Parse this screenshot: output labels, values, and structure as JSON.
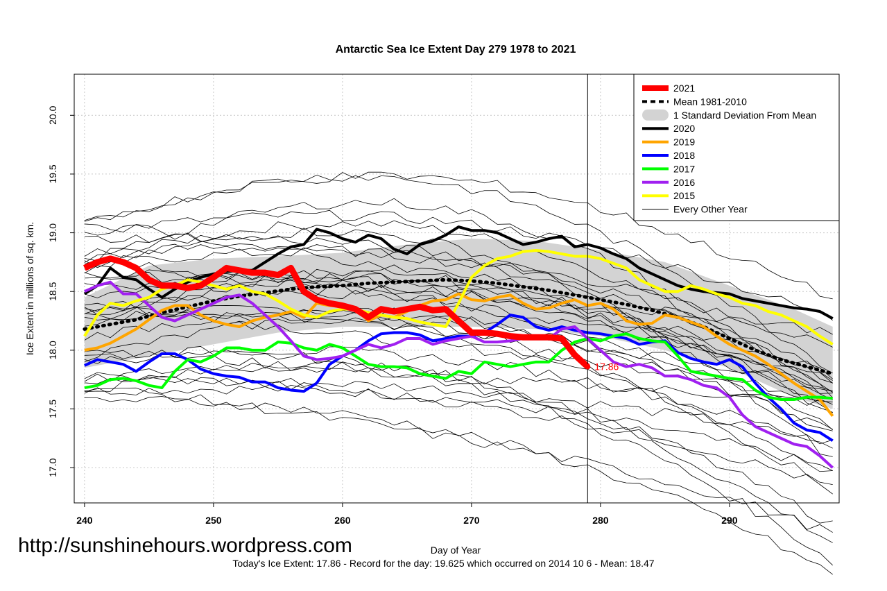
{
  "chart_data": {
    "type": "line",
    "title": "Antarctic Sea Ice Extent Day 279 1978 to 2021",
    "xlabel": "Day of Year",
    "ylabel": "Ice Extent in millions of sq. km.",
    "xlim": [
      239.2,
      298.5
    ],
    "ylim": [
      16.7,
      20.35
    ],
    "x_ticks": [
      240,
      250,
      260,
      270,
      280,
      290
    ],
    "x_tick_labels": [
      "240",
      "250",
      "260",
      "270",
      "280",
      "290"
    ],
    "y_ticks": [
      17.0,
      17.5,
      18.0,
      18.5,
      19.0,
      19.5,
      20.0
    ],
    "y_tick_labels": [
      "17.0",
      "17.5",
      "18.0",
      "18.5",
      "19.0",
      "19.5",
      "20.0"
    ],
    "grid": true,
    "current_day": 279,
    "current_value_label": "17.86",
    "legend_position": "top-right",
    "legend": [
      {
        "label": "2021",
        "color": "#ff0000",
        "style": "thick"
      },
      {
        "label": "Mean 1981-2010",
        "color": "#000000",
        "style": "dotted"
      },
      {
        "label": "1 Standard Deviation From Mean",
        "color": "#d3d3d3",
        "style": "band"
      },
      {
        "label": "2020",
        "color": "#000000",
        "style": "solid"
      },
      {
        "label": "2019",
        "color": "#ffa500",
        "style": "solid"
      },
      {
        "label": "2018",
        "color": "#0000ff",
        "style": "solid"
      },
      {
        "label": "2017",
        "color": "#00ff00",
        "style": "solid"
      },
      {
        "label": "2016",
        "color": "#a020f0",
        "style": "solid"
      },
      {
        "label": "2015",
        "color": "#ffff00",
        "style": "solid"
      },
      {
        "label": "Every Other Year",
        "color": "#000000",
        "style": "thin"
      }
    ],
    "std_band": {
      "x": [
        240,
        245,
        250,
        255,
        260,
        265,
        270,
        275,
        280,
        285,
        290,
        295,
        298
      ],
      "upper": [
        18.45,
        18.72,
        18.78,
        18.8,
        18.83,
        18.9,
        18.95,
        18.93,
        18.85,
        18.75,
        18.55,
        18.35,
        18.2
      ],
      "lower": [
        17.85,
        17.95,
        18.05,
        18.15,
        18.2,
        18.2,
        18.2,
        18.18,
        18.12,
        18.0,
        17.85,
        17.6,
        17.5
      ]
    },
    "series": [
      {
        "name": "2021",
        "color": "#ff0000",
        "width": 9,
        "x": [
          240,
          241,
          242,
          243,
          244,
          245,
          246,
          247,
          248,
          249,
          250,
          251,
          252,
          253,
          254,
          255,
          256,
          257,
          258,
          259,
          260,
          261,
          262,
          263,
          264,
          265,
          266,
          267,
          268,
          269,
          270,
          271,
          272,
          273,
          274,
          275,
          276,
          277,
          278,
          279
        ],
        "values": [
          18.7,
          18.75,
          18.78,
          18.75,
          18.7,
          18.6,
          18.55,
          18.55,
          18.53,
          18.55,
          18.62,
          18.7,
          18.68,
          18.66,
          18.66,
          18.64,
          18.7,
          18.5,
          18.43,
          18.4,
          18.38,
          18.35,
          18.28,
          18.35,
          18.33,
          18.35,
          18.37,
          18.34,
          18.35,
          18.25,
          18.15,
          18.15,
          18.14,
          18.12,
          18.11,
          18.11,
          18.11,
          18.1,
          17.96,
          17.86
        ]
      },
      {
        "name": "Mean 1981-2010",
        "color": "#000000",
        "width": 5,
        "dash": "2,7",
        "x": [
          240,
          242,
          244,
          246,
          248,
          250,
          252,
          254,
          256,
          258,
          260,
          262,
          264,
          266,
          268,
          270,
          272,
          274,
          276,
          278,
          280,
          282,
          284,
          286,
          288,
          290,
          292,
          294,
          296,
          298
        ],
        "values": [
          18.18,
          18.22,
          18.26,
          18.32,
          18.37,
          18.42,
          18.46,
          18.49,
          18.52,
          18.54,
          18.55,
          18.57,
          18.58,
          18.59,
          18.6,
          18.59,
          18.57,
          18.54,
          18.51,
          18.47,
          18.43,
          18.39,
          18.34,
          18.28,
          18.2,
          18.1,
          18.0,
          17.92,
          17.86,
          17.8
        ]
      },
      {
        "name": "2020",
        "color": "#000000",
        "width": 4,
        "x": [
          240,
          241,
          242,
          243,
          244,
          245,
          246,
          247,
          248,
          249,
          250,
          251,
          252,
          253,
          254,
          255,
          256,
          257,
          258,
          259,
          260,
          261,
          262,
          263,
          264,
          265,
          266,
          267,
          268,
          269,
          270,
          271,
          272,
          273,
          274,
          275,
          276,
          277,
          278,
          279,
          280,
          281,
          282,
          283,
          284,
          285,
          286,
          287,
          288,
          289,
          290,
          291,
          292,
          293,
          294,
          295,
          296,
          297,
          298
        ],
        "values": [
          18.48,
          18.55,
          18.7,
          18.62,
          18.6,
          18.52,
          18.45,
          18.52,
          18.58,
          18.62,
          18.65,
          18.67,
          18.68,
          18.68,
          18.75,
          18.82,
          18.88,
          18.9,
          19.03,
          19.0,
          18.95,
          18.92,
          18.98,
          18.95,
          18.86,
          18.82,
          18.9,
          18.93,
          18.98,
          19.05,
          19.02,
          19.02,
          19.0,
          18.95,
          18.9,
          18.92,
          18.95,
          18.97,
          18.88,
          18.9,
          18.87,
          18.82,
          18.78,
          18.7,
          18.65,
          18.6,
          18.55,
          18.52,
          18.5,
          18.49,
          18.48,
          18.44,
          18.42,
          18.4,
          18.38,
          18.36,
          18.35,
          18.33,
          18.27
        ]
      },
      {
        "name": "2019",
        "color": "#ffa500",
        "width": 4,
        "x": [
          240,
          241,
          242,
          243,
          244,
          245,
          246,
          247,
          248,
          249,
          250,
          251,
          252,
          253,
          254,
          255,
          256,
          257,
          258,
          259,
          260,
          261,
          262,
          263,
          264,
          265,
          266,
          267,
          268,
          269,
          270,
          271,
          272,
          273,
          274,
          275,
          276,
          277,
          278,
          279,
          280,
          281,
          282,
          283,
          284,
          285,
          286,
          287,
          288,
          289,
          290,
          291,
          292,
          293,
          294,
          295,
          296,
          297,
          298
        ],
        "values": [
          18.0,
          18.02,
          18.06,
          18.12,
          18.18,
          18.26,
          18.34,
          18.38,
          18.38,
          18.3,
          18.25,
          18.22,
          18.2,
          18.25,
          18.28,
          18.3,
          18.33,
          18.28,
          18.4,
          18.38,
          18.37,
          18.35,
          18.25,
          18.3,
          18.28,
          18.33,
          18.38,
          18.42,
          18.43,
          18.48,
          18.43,
          18.42,
          18.45,
          18.47,
          18.4,
          18.35,
          18.36,
          18.4,
          18.43,
          18.38,
          18.4,
          18.35,
          18.25,
          18.22,
          18.23,
          18.3,
          18.28,
          18.24,
          18.2,
          18.12,
          18.05,
          18.0,
          17.95,
          17.88,
          17.8,
          17.72,
          17.65,
          17.58,
          17.44
        ]
      },
      {
        "name": "2018",
        "color": "#0000ff",
        "width": 4,
        "x": [
          240,
          241,
          242,
          243,
          244,
          245,
          246,
          247,
          248,
          249,
          250,
          251,
          252,
          253,
          254,
          255,
          256,
          257,
          258,
          259,
          260,
          261,
          262,
          263,
          264,
          265,
          266,
          267,
          268,
          269,
          270,
          271,
          272,
          273,
          274,
          275,
          276,
          277,
          278,
          279,
          280,
          281,
          282,
          283,
          284,
          285,
          286,
          287,
          288,
          289,
          290,
          291,
          292,
          293,
          294,
          295,
          296,
          297,
          298
        ],
        "values": [
          17.87,
          17.92,
          17.9,
          17.88,
          17.82,
          17.9,
          17.97,
          17.97,
          17.92,
          17.84,
          17.8,
          17.78,
          17.77,
          17.73,
          17.73,
          17.68,
          17.66,
          17.65,
          17.72,
          17.88,
          17.95,
          18.0,
          18.08,
          18.14,
          18.15,
          18.15,
          18.13,
          18.08,
          18.1,
          18.12,
          18.12,
          18.15,
          18.22,
          18.3,
          18.28,
          18.2,
          18.17,
          18.2,
          18.17,
          18.15,
          18.14,
          18.12,
          18.1,
          18.05,
          18.07,
          18.08,
          17.98,
          17.93,
          17.9,
          17.88,
          17.92,
          17.86,
          17.72,
          17.6,
          17.5,
          17.38,
          17.32,
          17.3,
          17.23
        ]
      },
      {
        "name": "2017",
        "color": "#00ff00",
        "width": 4,
        "x": [
          240,
          241,
          242,
          243,
          244,
          245,
          246,
          247,
          248,
          249,
          250,
          251,
          252,
          253,
          254,
          255,
          256,
          257,
          258,
          259,
          260,
          261,
          262,
          263,
          264,
          265,
          266,
          267,
          268,
          269,
          270,
          271,
          272,
          273,
          274,
          275,
          276,
          277,
          278,
          279,
          280,
          281,
          282,
          283,
          284,
          285,
          286,
          287,
          288,
          289,
          290,
          291,
          292,
          293,
          294,
          295,
          296,
          297,
          298
        ],
        "values": [
          17.68,
          17.7,
          17.75,
          17.76,
          17.74,
          17.7,
          17.68,
          17.82,
          17.92,
          17.9,
          17.95,
          18.02,
          18.02,
          18.0,
          18.0,
          18.07,
          18.06,
          18.02,
          18.0,
          18.05,
          18.02,
          17.95,
          17.88,
          17.86,
          17.86,
          17.85,
          17.8,
          17.78,
          17.76,
          17.82,
          17.8,
          17.9,
          17.88,
          17.86,
          17.88,
          17.9,
          17.9,
          18.0,
          18.07,
          18.1,
          18.08,
          18.12,
          18.14,
          18.1,
          18.08,
          18.07,
          17.95,
          17.82,
          17.8,
          17.78,
          17.76,
          17.75,
          17.66,
          17.6,
          17.58,
          17.58,
          17.6,
          17.6,
          17.59
        ]
      },
      {
        "name": "2016",
        "color": "#a020f0",
        "width": 4,
        "x": [
          240,
          241,
          242,
          243,
          244,
          245,
          246,
          247,
          248,
          249,
          250,
          251,
          252,
          253,
          254,
          255,
          256,
          257,
          258,
          259,
          260,
          261,
          262,
          263,
          264,
          265,
          266,
          267,
          268,
          269,
          270,
          271,
          272,
          273,
          274,
          275,
          276,
          277,
          278,
          279,
          280,
          281,
          282,
          283,
          284,
          285,
          286,
          287,
          288,
          289,
          290,
          291,
          292,
          293,
          294,
          295,
          296,
          297,
          298
        ],
        "values": [
          18.5,
          18.55,
          18.58,
          18.48,
          18.48,
          18.38,
          18.28,
          18.25,
          18.3,
          18.35,
          18.4,
          18.45,
          18.47,
          18.4,
          18.3,
          18.2,
          18.08,
          17.95,
          17.92,
          17.93,
          17.95,
          18.0,
          18.05,
          18.02,
          18.05,
          18.1,
          18.1,
          18.05,
          18.08,
          18.1,
          18.12,
          18.07,
          18.07,
          18.08,
          18.1,
          18.1,
          18.1,
          18.18,
          18.2,
          18.1,
          18.0,
          17.9,
          17.86,
          17.88,
          17.85,
          17.78,
          17.78,
          17.75,
          17.7,
          17.68,
          17.6,
          17.45,
          17.35,
          17.3,
          17.25,
          17.2,
          17.18,
          17.1,
          17.0
        ]
      },
      {
        "name": "2015",
        "color": "#ffff00",
        "width": 4,
        "x": [
          240,
          241,
          242,
          243,
          244,
          245,
          246,
          247,
          248,
          249,
          250,
          251,
          252,
          253,
          254,
          255,
          256,
          257,
          258,
          259,
          260,
          261,
          262,
          263,
          264,
          265,
          266,
          267,
          268,
          269,
          270,
          271,
          272,
          273,
          274,
          275,
          276,
          277,
          278,
          279,
          280,
          281,
          282,
          283,
          284,
          285,
          286,
          287,
          288,
          289,
          290,
          291,
          292,
          293,
          294,
          295,
          296,
          297,
          298
        ],
        "values": [
          18.12,
          18.3,
          18.4,
          18.38,
          18.42,
          18.45,
          18.52,
          18.55,
          18.6,
          18.58,
          18.55,
          18.52,
          18.55,
          18.5,
          18.48,
          18.42,
          18.35,
          18.3,
          18.28,
          18.33,
          18.35,
          18.35,
          18.32,
          18.3,
          18.28,
          18.27,
          18.24,
          18.22,
          18.2,
          18.4,
          18.62,
          18.72,
          18.78,
          18.8,
          18.84,
          18.85,
          18.84,
          18.82,
          18.8,
          18.8,
          18.78,
          18.74,
          18.7,
          18.6,
          18.55,
          18.5,
          18.5,
          18.55,
          18.52,
          18.48,
          18.45,
          18.4,
          18.38,
          18.33,
          18.3,
          18.25,
          18.2,
          18.12,
          18.05
        ]
      }
    ],
    "other_years_note": "Every Other Year"
  },
  "footer": {
    "watermark": "http://sunshinehours.wordpress.com",
    "summary": "Today's Ice Extent: 17.86  - Record for the day: 19.625 which occurred on 2014 10 6  - Mean: 18.47"
  }
}
